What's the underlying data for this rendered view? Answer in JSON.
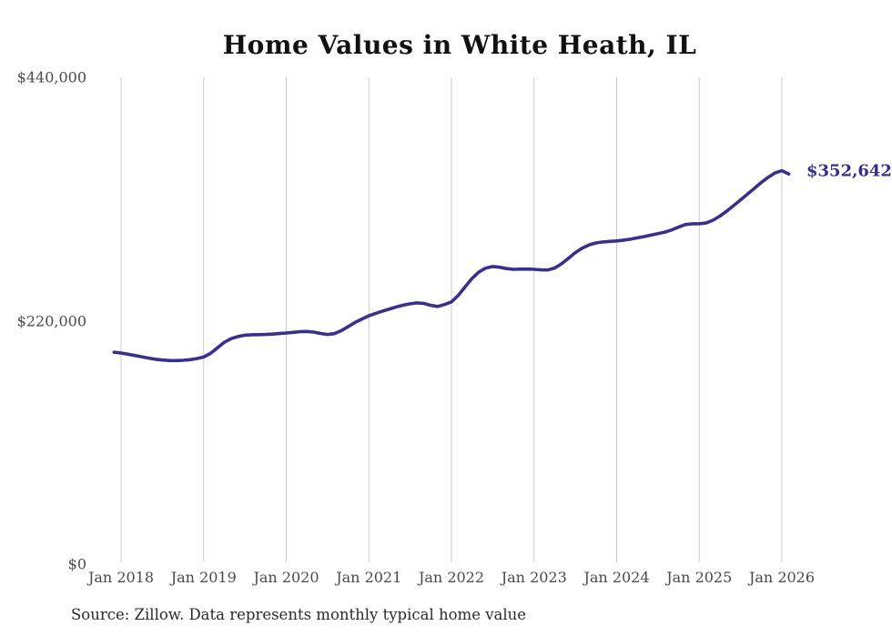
{
  "page": {
    "title": "Home Values in White Heath, IL",
    "source_note": "Source: Zillow. Data represents monthly typical home value",
    "latest_value_label": "$352,642",
    "colors": {
      "line": "#38308c",
      "end_label": "#332e8f",
      "gridline": "#cccccc",
      "title": "#111111",
      "tick": "#4a4a4a",
      "source": "#2b2b2b",
      "background": "#ffffff"
    }
  },
  "chart_data": {
    "type": "line",
    "title": "Home Values in White Heath, IL",
    "xlabel": "",
    "ylabel": "",
    "ylim": [
      0,
      440000
    ],
    "grid": "vertical-only",
    "legend": "none",
    "series_name": "Monthly typical home value",
    "annotation": {
      "text": "$352,642",
      "value": 352642
    },
    "yticks": [
      {
        "label": "$0",
        "value": 0
      },
      {
        "label": "$220,000",
        "value": 220000
      },
      {
        "label": "$440,000",
        "value": 440000
      }
    ],
    "xticks": [
      {
        "label": "Jan 2018",
        "month_index": 1
      },
      {
        "label": "Jan 2019",
        "month_index": 13
      },
      {
        "label": "Jan 2020",
        "month_index": 25
      },
      {
        "label": "Jan 2021",
        "month_index": 37
      },
      {
        "label": "Jan 2022",
        "month_index": 49
      },
      {
        "label": "Jan 2023",
        "month_index": 61
      },
      {
        "label": "Jan 2024",
        "month_index": 73
      },
      {
        "label": "Jan 2025",
        "month_index": 85
      },
      {
        "label": "Jan 2026",
        "month_index": 97
      }
    ],
    "x": [
      "Dec 2017",
      "Jan 2018",
      "Feb 2018",
      "Mar 2018",
      "Apr 2018",
      "May 2018",
      "Jun 2018",
      "Jul 2018",
      "Aug 2018",
      "Sep 2018",
      "Oct 2018",
      "Nov 2018",
      "Dec 2018",
      "Jan 2019",
      "Feb 2019",
      "Mar 2019",
      "Apr 2019",
      "May 2019",
      "Jun 2019",
      "Jul 2019",
      "Aug 2019",
      "Sep 2019",
      "Oct 2019",
      "Nov 2019",
      "Dec 2019",
      "Jan 2020",
      "Feb 2020",
      "Mar 2020",
      "Apr 2020",
      "May 2020",
      "Jun 2020",
      "Jul 2020",
      "Aug 2020",
      "Sep 2020",
      "Oct 2020",
      "Nov 2020",
      "Dec 2020",
      "Jan 2021",
      "Feb 2021",
      "Mar 2021",
      "Apr 2021",
      "May 2021",
      "Jun 2021",
      "Jul 2021",
      "Aug 2021",
      "Sep 2021",
      "Oct 2021",
      "Nov 2021",
      "Dec 2021",
      "Jan 2022",
      "Feb 2022",
      "Mar 2022",
      "Apr 2022",
      "May 2022",
      "Jun 2022",
      "Jul 2022",
      "Aug 2022",
      "Sep 2022",
      "Oct 2022",
      "Nov 2022",
      "Dec 2022",
      "Jan 2023",
      "Feb 2023",
      "Mar 2023",
      "Apr 2023",
      "May 2023",
      "Jun 2023",
      "Jul 2023",
      "Aug 2023",
      "Sep 2023",
      "Oct 2023",
      "Nov 2023",
      "Dec 2023",
      "Jan 2024",
      "Feb 2024",
      "Mar 2024",
      "Apr 2024",
      "May 2024",
      "Jun 2024",
      "Jul 2024",
      "Aug 2024",
      "Sep 2024",
      "Oct 2024",
      "Nov 2024",
      "Dec 2024",
      "Jan 2025",
      "Feb 2025",
      "Mar 2025",
      "Apr 2025",
      "May 2025",
      "Jun 2025",
      "Jul 2025",
      "Aug 2025",
      "Sep 2025",
      "Oct 2025",
      "Nov 2025",
      "Dec 2025",
      "Jan 2026",
      "Feb 2026"
    ],
    "values": [
      191500,
      190800,
      189700,
      188600,
      187400,
      186200,
      185200,
      184500,
      184100,
      184000,
      184200,
      184800,
      185800,
      187200,
      190500,
      195500,
      200500,
      203800,
      205800,
      206900,
      207300,
      207400,
      207600,
      207900,
      208400,
      208900,
      209500,
      210100,
      210300,
      209700,
      208500,
      207600,
      208300,
      211000,
      214700,
      218400,
      221600,
      224500,
      226700,
      228700,
      230600,
      232500,
      234100,
      235300,
      236100,
      235600,
      233900,
      232900,
      234600,
      237000,
      243000,
      250800,
      258300,
      264200,
      267600,
      269000,
      268400,
      267100,
      266500,
      266600,
      266700,
      266500,
      266000,
      265900,
      267600,
      271500,
      276500,
      281600,
      285600,
      288600,
      290300,
      291200,
      291700,
      292100,
      292900,
      293700,
      294900,
      296100,
      297400,
      298700,
      300100,
      302100,
      304600,
      306900,
      307700,
      307700,
      308300,
      310900,
      314600,
      319100,
      324100,
      329200,
      334400,
      339700,
      344900,
      349600,
      353600,
      355600,
      352642
    ]
  }
}
